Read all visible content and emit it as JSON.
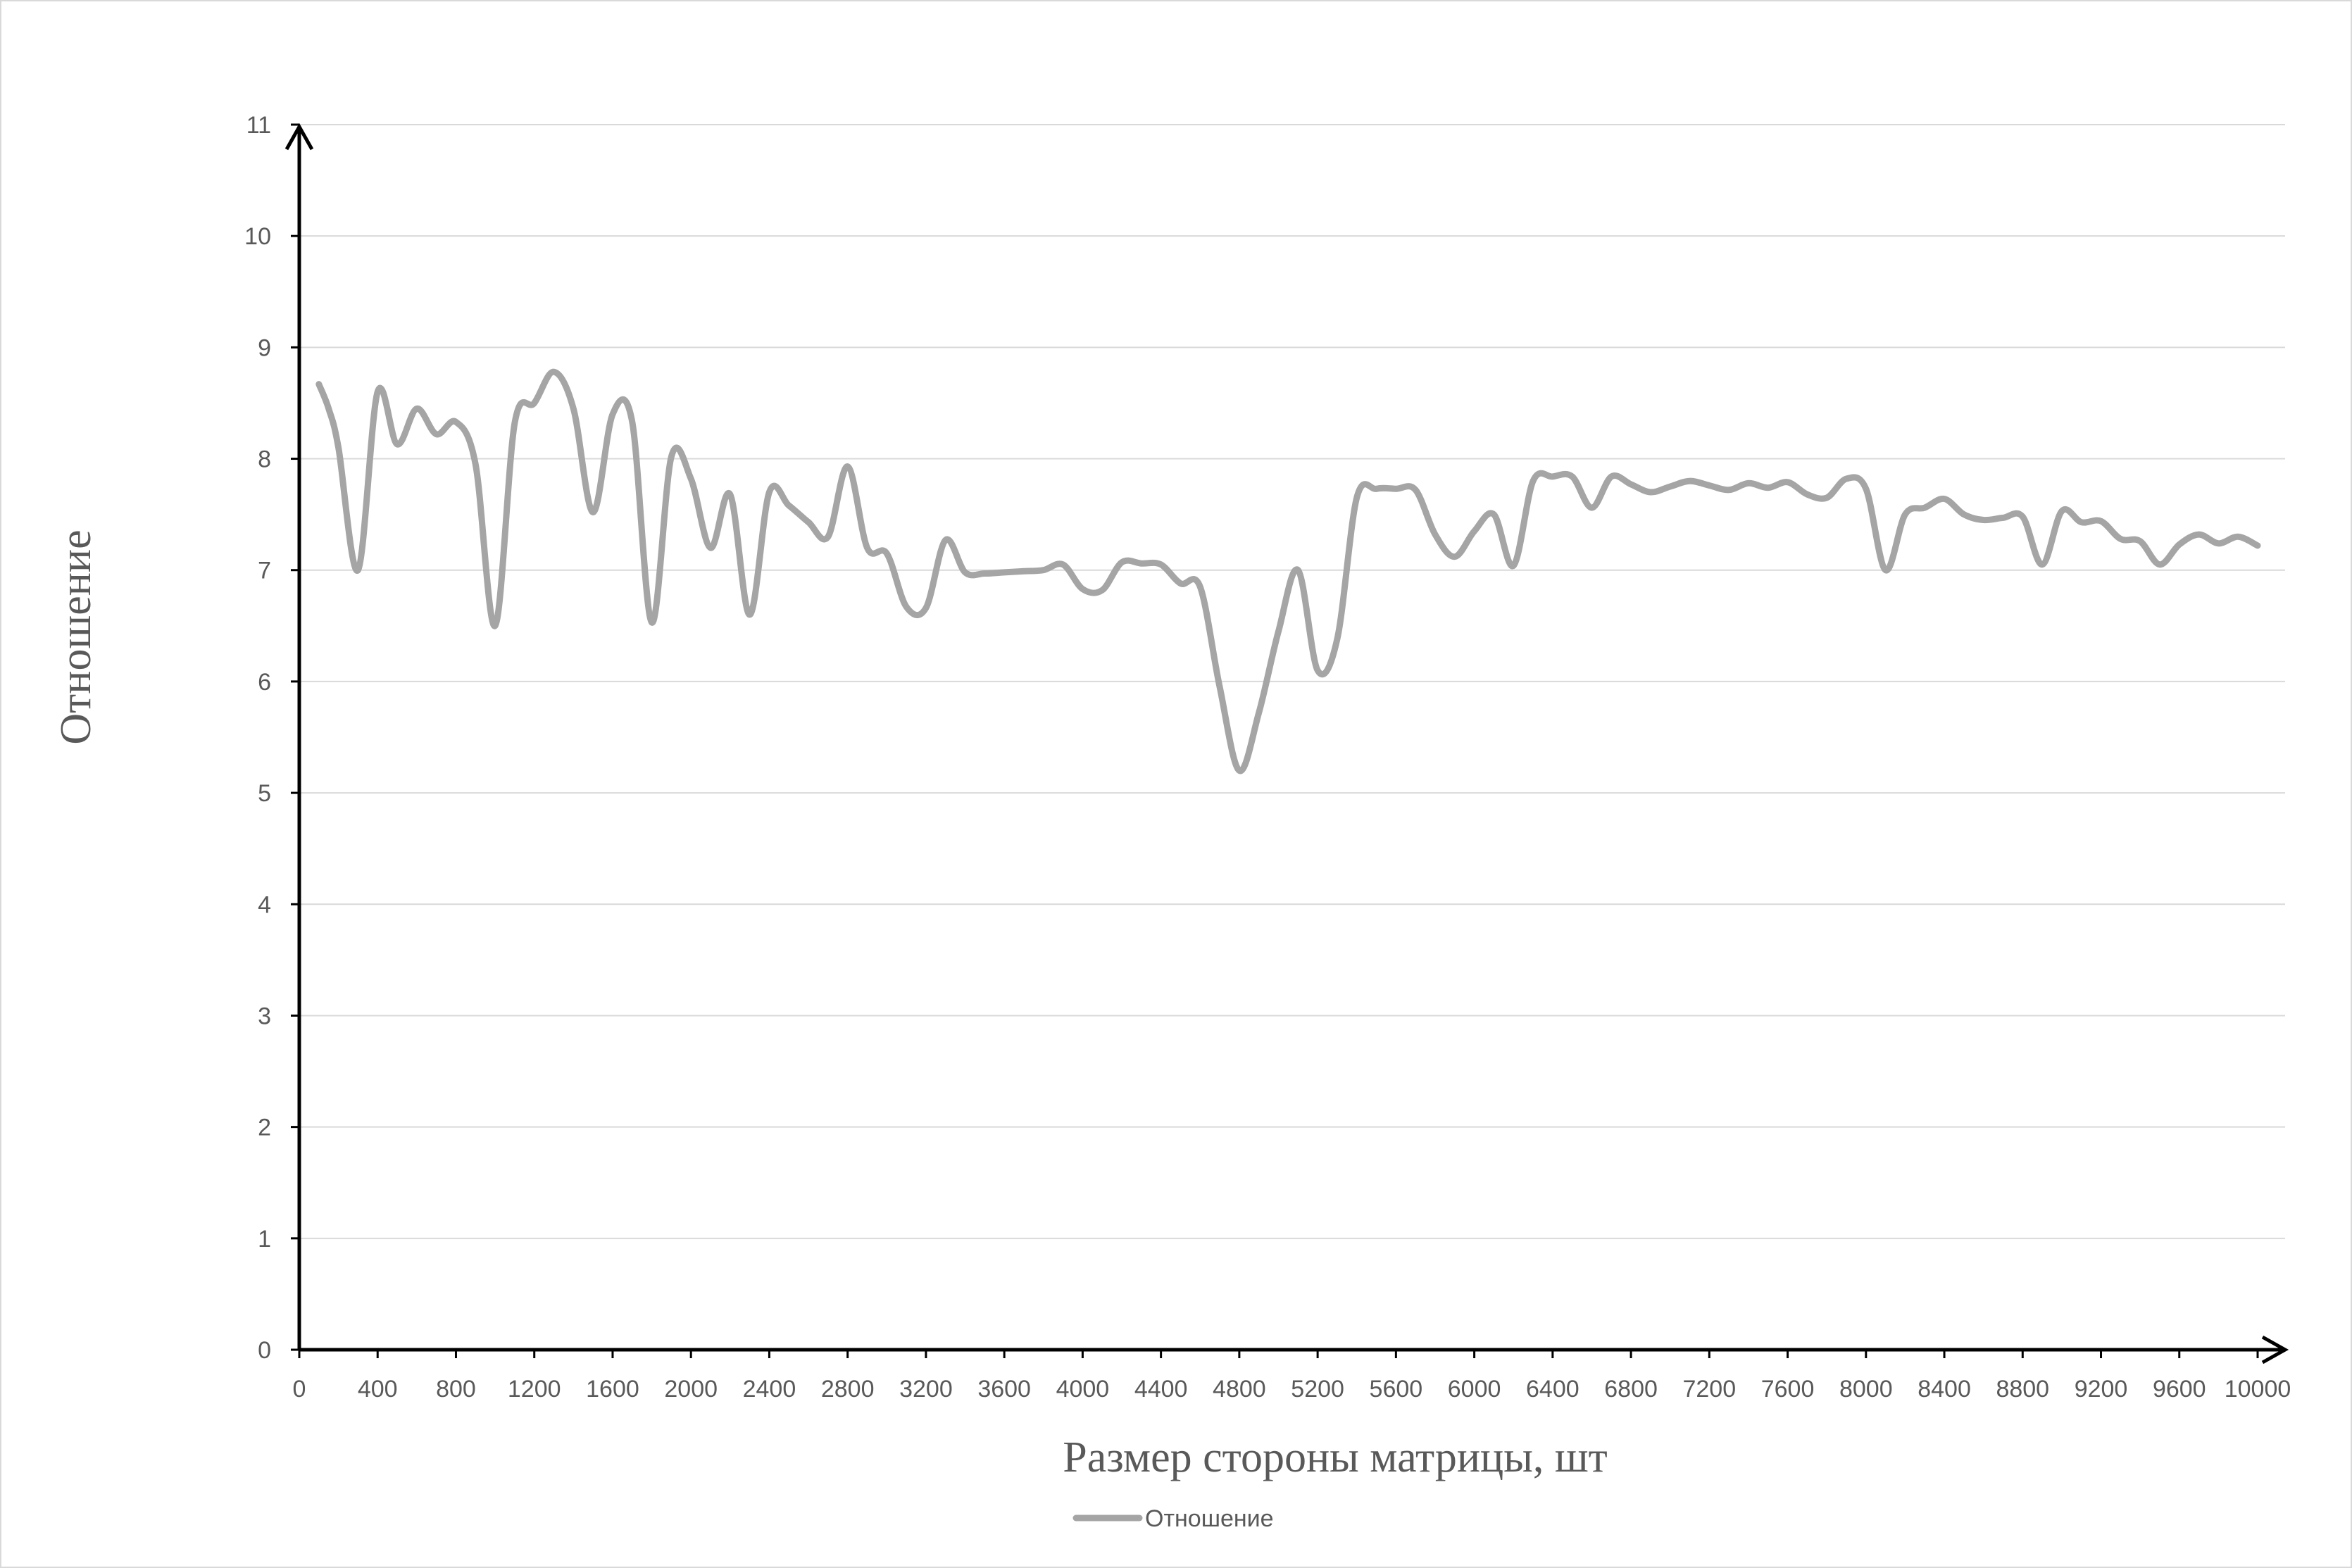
{
  "chart_data": {
    "type": "line",
    "title": "",
    "xlabel": "Размер стороны матрицы, шт",
    "ylabel": "Отношение",
    "xlim": [
      0,
      10000
    ],
    "ylim": [
      0,
      11
    ],
    "x_ticks": [
      0,
      400,
      800,
      1200,
      1600,
      2000,
      2400,
      2800,
      3200,
      3600,
      4000,
      4400,
      4800,
      5200,
      5600,
      6000,
      6400,
      6800,
      7200,
      7600,
      8000,
      8400,
      8800,
      9200,
      9600,
      10000
    ],
    "y_ticks": [
      0,
      1,
      2,
      3,
      4,
      5,
      6,
      7,
      8,
      9,
      10,
      11
    ],
    "grid": true,
    "legend": "bottom",
    "series": [
      {
        "name": "Отношение",
        "color": "#a5a5a5",
        "x": [
          100,
          150,
          200,
          300,
          400,
          500,
          600,
          700,
          800,
          900,
          1000,
          1100,
          1200,
          1300,
          1400,
          1500,
          1600,
          1700,
          1800,
          1900,
          2000,
          2100,
          2200,
          2300,
          2400,
          2500,
          2600,
          2700,
          2800,
          2900,
          3000,
          3100,
          3200,
          3300,
          3400,
          3500,
          3600,
          3700,
          3800,
          3900,
          4000,
          4100,
          4200,
          4300,
          4400,
          4500,
          4600,
          4700,
          4800,
          4900,
          5000,
          5100,
          5200,
          5300,
          5400,
          5500,
          5600,
          5700,
          5800,
          5900,
          6000,
          6100,
          6200,
          6300,
          6400,
          6500,
          6600,
          6700,
          6800,
          6900,
          7000,
          7100,
          7200,
          7300,
          7400,
          7500,
          7600,
          7700,
          7800,
          7900,
          8000,
          8100,
          8200,
          8300,
          8400,
          8500,
          8600,
          8700,
          8800,
          8900,
          9000,
          9100,
          9200,
          9300,
          9400,
          9500,
          9600,
          9700,
          9800,
          9900,
          10000
        ],
        "y": [
          8.67,
          8.45,
          8.1,
          7.0,
          8.6,
          8.13,
          8.45,
          8.22,
          8.33,
          7.95,
          6.5,
          8.32,
          8.5,
          8.78,
          8.45,
          7.52,
          8.4,
          8.33,
          6.53,
          8.02,
          7.82,
          7.2,
          7.68,
          6.6,
          7.7,
          7.58,
          7.43,
          7.3,
          7.93,
          7.2,
          7.15,
          6.67,
          6.66,
          7.27,
          6.98,
          6.97,
          6.98,
          6.99,
          7.0,
          7.05,
          6.83,
          6.82,
          7.07,
          7.06,
          7.05,
          6.88,
          6.85,
          5.95,
          5.2,
          5.72,
          6.45,
          7.0,
          6.1,
          6.38,
          7.65,
          7.73,
          7.73,
          7.72,
          7.32,
          7.12,
          7.35,
          7.5,
          7.04,
          7.8,
          7.84,
          7.84,
          7.56,
          7.84,
          7.77,
          7.7,
          7.75,
          7.8,
          7.76,
          7.72,
          7.78,
          7.74,
          7.79,
          7.68,
          7.65,
          7.82,
          7.73,
          7.0,
          7.5,
          7.56,
          7.64,
          7.5,
          7.45,
          7.47,
          7.48,
          7.05,
          7.53,
          7.43,
          7.44,
          7.28,
          7.26,
          7.05,
          7.23,
          7.32,
          7.24,
          7.3,
          7.22
        ]
      }
    ]
  }
}
